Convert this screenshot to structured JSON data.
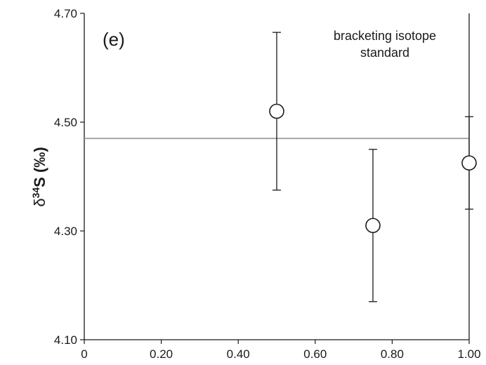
{
  "chart_data": {
    "type": "scatter",
    "panel_label": "(e)",
    "annotation": [
      "bracketing isotope",
      "standard"
    ],
    "ylabel": {
      "prefix": "δ",
      "sup": "34",
      "main": "S",
      "unit": " (‰)"
    },
    "xlabel": "",
    "xlim": [
      0,
      1.0
    ],
    "ylim": [
      4.1,
      4.7
    ],
    "xticks": [
      0,
      0.2,
      0.4,
      0.6,
      0.8,
      1.0
    ],
    "xtick_labels": [
      "0",
      "0.20",
      "0.40",
      "0.60",
      "0.80",
      "1.00"
    ],
    "yticks": [
      4.1,
      4.3,
      4.5,
      4.7
    ],
    "ytick_labels": [
      "4.10",
      "4.30",
      "4.50",
      "4.70"
    ],
    "reference_line": {
      "y": 4.47,
      "color": "#9a9a9a"
    },
    "series": [
      {
        "points": [
          {
            "x": 0.5,
            "y": 4.52,
            "err_low": 4.375,
            "err_high": 4.665
          },
          {
            "x": 0.75,
            "y": 4.31,
            "err_low": 4.17,
            "err_high": 4.45
          },
          {
            "x": 1.0,
            "y": 4.425,
            "err_low": 4.34,
            "err_high": 4.51
          }
        ]
      }
    ],
    "grid": false,
    "marker": "open-circle"
  }
}
